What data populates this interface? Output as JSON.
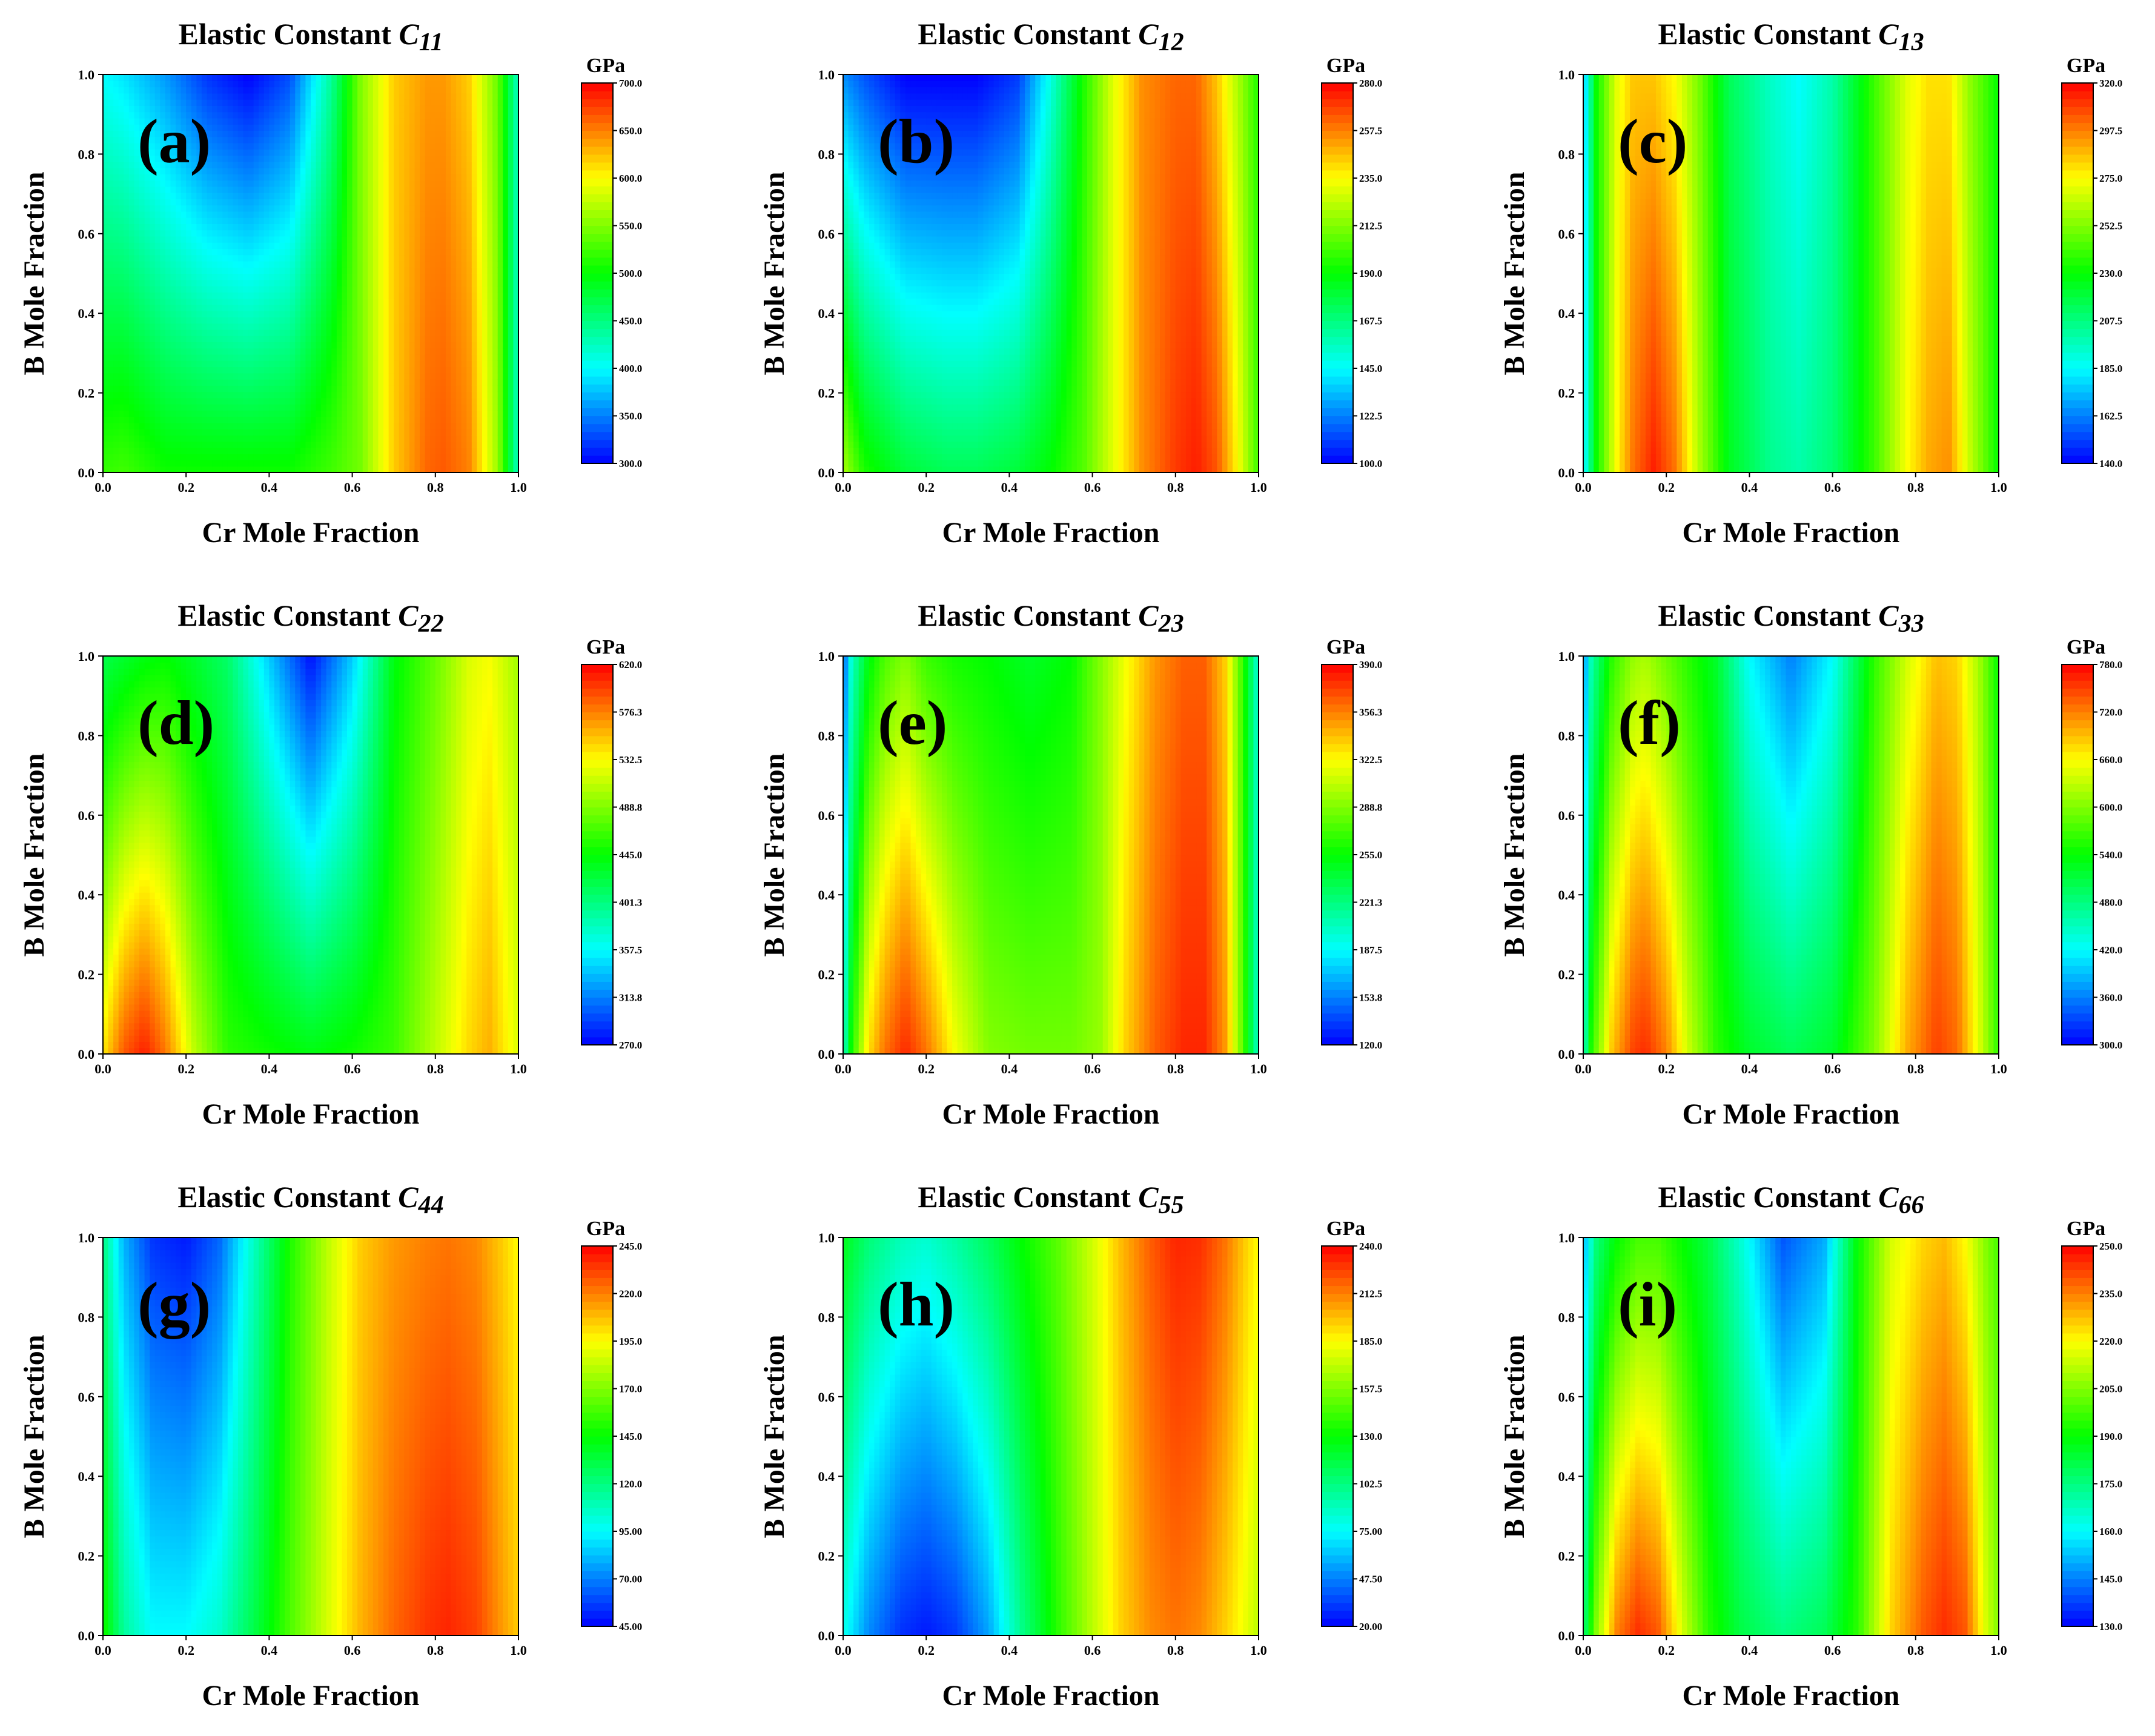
{
  "figure": {
    "x_label": "Cr Mole Fraction",
    "y_label": "B Mole Fraction",
    "colorbar_unit": "GPa",
    "title_prefix": "Elastic Constant",
    "colormap": [
      "#0000ff",
      "#00ffff",
      "#00ff00",
      "#ffff00",
      "#ff0000"
    ]
  },
  "chart_data": [
    {
      "type": "heatmap",
      "panel": "(a)",
      "title": "Elastic Constant C11",
      "title_main": "Elastic Constant",
      "title_sub": "C11",
      "xlabel": "Cr Mole Fraction",
      "ylabel": "B Mole Fraction",
      "xlim": [
        0.0,
        1.0
      ],
      "ylim": [
        0.0,
        1.0
      ],
      "x_ticks": [
        "0.0",
        "0.2",
        "0.4",
        "0.6",
        "0.8",
        "1.0"
      ],
      "y_ticks": [
        "0.0",
        "0.2",
        "0.4",
        "0.6",
        "0.8",
        "1.0"
      ],
      "colorbar_unit": "GPa",
      "colorbar_range": [
        300.0,
        700.0
      ],
      "colorbar_ticks": [
        "300.0",
        "350.0",
        "400.0",
        "450.0",
        "500.0",
        "550.0",
        "600.0",
        "650.0",
        "700.0"
      ],
      "field_profile": {
        "x": [
          0.0,
          0.05,
          0.15,
          0.25,
          0.35,
          0.45,
          0.55,
          0.62,
          0.7,
          0.78,
          0.82,
          0.88,
          0.95,
          1.0
        ],
        "bottom": [
          520,
          525,
          505,
          505,
          505,
          505,
          525,
          545,
          620,
          660,
          665,
          650,
          560,
          420
        ],
        "top": [
          400,
          390,
          360,
          320,
          300,
          330,
          440,
          550,
          620,
          640,
          640,
          620,
          540,
          420
        ]
      }
    },
    {
      "type": "heatmap",
      "panel": "(b)",
      "title": "Elastic Constant C12",
      "title_main": "Elastic Constant",
      "title_sub": "C12",
      "xlabel": "Cr Mole Fraction",
      "ylabel": "B Mole Fraction",
      "xlim": [
        0.0,
        1.0
      ],
      "ylim": [
        0.0,
        1.0
      ],
      "x_ticks": [
        "0.0",
        "0.2",
        "0.4",
        "0.6",
        "0.8",
        "1.0"
      ],
      "y_ticks": [
        "0.0",
        "0.2",
        "0.4",
        "0.6",
        "0.8",
        "1.0"
      ],
      "colorbar_unit": "GPa",
      "colorbar_range": [
        100.0,
        280.0
      ],
      "colorbar_ticks": [
        "100.0",
        "122.5",
        "145.0",
        "167.5",
        "190.0",
        "212.5",
        "235.0",
        "257.5",
        "280.0"
      ],
      "field_profile": {
        "x": [
          0.0,
          0.05,
          0.15,
          0.25,
          0.32,
          0.42,
          0.5,
          0.58,
          0.65,
          0.72,
          0.8,
          0.85,
          0.9,
          0.95,
          1.0
        ],
        "bottom": [
          220,
          195,
          180,
          175,
          175,
          180,
          190,
          205,
          230,
          255,
          270,
          275,
          265,
          235,
          200
        ],
        "top": [
          125,
          115,
          100,
          100,
          100,
          110,
          150,
          195,
          230,
          255,
          262,
          262,
          245,
          220,
          195
        ]
      }
    },
    {
      "type": "heatmap",
      "panel": "(c)",
      "title": "Elastic Constant C13",
      "title_main": "Elastic Constant",
      "title_sub": "C13",
      "xlabel": "Cr Mole Fraction",
      "ylabel": "B Mole Fraction",
      "xlim": [
        0.0,
        1.0
      ],
      "ylim": [
        0.0,
        1.0
      ],
      "x_ticks": [
        "0.0",
        "0.2",
        "0.4",
        "0.6",
        "0.8",
        "1.0"
      ],
      "y_ticks": [
        "0.0",
        "0.2",
        "0.4",
        "0.6",
        "0.8",
        "1.0"
      ],
      "colorbar_unit": "GPa",
      "colorbar_range": [
        140.0,
        320.0
      ],
      "colorbar_ticks": [
        "140.0",
        "162.5",
        "185.0",
        "207.5",
        "230.0",
        "252.5",
        "275.0",
        "297.5",
        "320.0"
      ],
      "field_profile": {
        "x": [
          0.0,
          0.03,
          0.08,
          0.12,
          0.17,
          0.22,
          0.28,
          0.35,
          0.45,
          0.52,
          0.6,
          0.7,
          0.78,
          0.83,
          0.88,
          0.93,
          1.0
        ],
        "bottom": [
          180,
          230,
          275,
          300,
          315,
          300,
          260,
          225,
          205,
          200,
          210,
          240,
          275,
          290,
          295,
          265,
          230
        ],
        "top": [
          170,
          230,
          270,
          285,
          285,
          275,
          250,
          215,
          195,
          185,
          200,
          240,
          270,
          280,
          280,
          255,
          230
        ]
      }
    },
    {
      "type": "heatmap",
      "panel": "(d)",
      "title": "Elastic Constant C22",
      "title_main": "Elastic Constant",
      "title_sub": "C22",
      "xlabel": "Cr Mole Fraction",
      "ylabel": "B Mole Fraction",
      "xlim": [
        0.0,
        1.0
      ],
      "ylim": [
        0.0,
        1.0
      ],
      "x_ticks": [
        "0.0",
        "0.2",
        "0.4",
        "0.6",
        "0.8",
        "1.0"
      ],
      "y_ticks": [
        "0.0",
        "0.2",
        "0.4",
        "0.6",
        "0.8",
        "1.0"
      ],
      "colorbar_unit": "GPa",
      "colorbar_range": [
        270.0,
        620.0
      ],
      "colorbar_ticks": [
        "270.0",
        "313.8",
        "357.5",
        "401.3",
        "445.0",
        "488.8",
        "532.5",
        "576.3",
        "620.0"
      ],
      "field_profile": {
        "x": [
          0.0,
          0.05,
          0.1,
          0.15,
          0.22,
          0.3,
          0.4,
          0.5,
          0.6,
          0.7,
          0.8,
          0.88,
          0.93,
          1.0
        ],
        "bottom": [
          540,
          590,
          610,
          580,
          510,
          460,
          450,
          440,
          450,
          465,
          510,
          545,
          560,
          520
        ],
        "top": [
          420,
          430,
          440,
          445,
          430,
          410,
          340,
          275,
          340,
          440,
          480,
          520,
          530,
          500
        ]
      }
    },
    {
      "type": "heatmap",
      "panel": "(e)",
      "title": "Elastic Constant C23",
      "title_main": "Elastic Constant",
      "title_sub": "C23",
      "xlabel": "Cr Mole Fraction",
      "ylabel": "B Mole Fraction",
      "xlim": [
        0.0,
        1.0
      ],
      "ylim": [
        0.0,
        1.0
      ],
      "x_ticks": [
        "0.0",
        "0.2",
        "0.4",
        "0.6",
        "0.8",
        "1.0"
      ],
      "y_ticks": [
        "0.0",
        "0.2",
        "0.4",
        "0.6",
        "0.8",
        "1.0"
      ],
      "colorbar_unit": "GPa",
      "colorbar_range": [
        120.0,
        390.0
      ],
      "colorbar_ticks": [
        "120.0",
        "153.8",
        "187.5",
        "221.3",
        "255.0",
        "288.8",
        "322.5",
        "356.3",
        "390.0"
      ],
      "field_profile": {
        "x": [
          0.0,
          0.02,
          0.06,
          0.1,
          0.15,
          0.2,
          0.27,
          0.35,
          0.45,
          0.55,
          0.62,
          0.68,
          0.75,
          0.82,
          0.87,
          0.92,
          0.96,
          1.0
        ],
        "bottom": [
          200,
          260,
          330,
          360,
          380,
          360,
          320,
          290,
          285,
          285,
          295,
          335,
          365,
          380,
          380,
          350,
          280,
          200
        ],
        "top": [
          140,
          200,
          250,
          275,
          290,
          270,
          260,
          255,
          245,
          255,
          290,
          320,
          350,
          365,
          365,
          335,
          270,
          195
        ]
      }
    },
    {
      "type": "heatmap",
      "panel": "(f)",
      "title": "Elastic Constant C33",
      "title_main": "Elastic Constant",
      "title_sub": "C33",
      "xlabel": "Cr Mole Fraction",
      "ylabel": "B Mole Fraction",
      "xlim": [
        0.0,
        1.0
      ],
      "ylim": [
        0.0,
        1.0
      ],
      "x_ticks": [
        "0.0",
        "0.2",
        "0.4",
        "0.6",
        "0.8",
        "1.0"
      ],
      "y_ticks": [
        "0.0",
        "0.2",
        "0.4",
        "0.6",
        "0.8",
        "1.0"
      ],
      "colorbar_unit": "GPa",
      "colorbar_range": [
        300.0,
        780.0
      ],
      "colorbar_ticks": [
        "300.0",
        "360.0",
        "420.0",
        "480.0",
        "540.0",
        "600.0",
        "660.0",
        "720.0",
        "780.0"
      ],
      "field_profile": {
        "x": [
          0.0,
          0.02,
          0.07,
          0.12,
          0.15,
          0.2,
          0.25,
          0.32,
          0.4,
          0.5,
          0.6,
          0.7,
          0.78,
          0.85,
          0.9,
          0.95,
          1.0
        ],
        "bottom": [
          440,
          560,
          690,
          750,
          760,
          720,
          640,
          560,
          520,
          500,
          520,
          600,
          700,
          750,
          730,
          650,
          560
        ],
        "top": [
          360,
          460,
          560,
          610,
          620,
          590,
          560,
          520,
          420,
          360,
          420,
          560,
          640,
          690,
          680,
          620,
          540
        ]
      }
    },
    {
      "type": "heatmap",
      "panel": "(g)",
      "title": "Elastic Constant C44",
      "title_main": "Elastic Constant",
      "title_sub": "C44",
      "xlabel": "Cr Mole Fraction",
      "ylabel": "B Mole Fraction",
      "xlim": [
        0.0,
        1.0
      ],
      "ylim": [
        0.0,
        1.0
      ],
      "x_ticks": [
        "0.0",
        "0.2",
        "0.4",
        "0.6",
        "0.8",
        "1.0"
      ],
      "y_ticks": [
        "0.0",
        "0.2",
        "0.4",
        "0.6",
        "0.8",
        "1.0"
      ],
      "colorbar_unit": "GPa",
      "colorbar_range": [
        45.0,
        245.0
      ],
      "colorbar_ticks": [
        "45.00",
        "70.00",
        "95.00",
        "120.0",
        "145.0",
        "170.0",
        "195.0",
        "220.0",
        "245.0"
      ],
      "field_profile": {
        "x": [
          0.0,
          0.05,
          0.12,
          0.2,
          0.28,
          0.36,
          0.45,
          0.55,
          0.62,
          0.7,
          0.78,
          0.83,
          0.9,
          0.96,
          1.0
        ],
        "bottom": [
          150,
          115,
          95,
          95,
          105,
          130,
          160,
          190,
          210,
          225,
          235,
          238,
          232,
          215,
          205
        ],
        "top": [
          120,
          80,
          55,
          50,
          65,
          105,
          150,
          185,
          205,
          215,
          220,
          222,
          218,
          205,
          195
        ]
      }
    },
    {
      "type": "heatmap",
      "panel": "(h)",
      "title": "Elastic Constant C55",
      "title_main": "Elastic Constant",
      "title_sub": "C55",
      "xlabel": "Cr Mole Fraction",
      "ylabel": "B Mole Fraction",
      "xlim": [
        0.0,
        1.0
      ],
      "ylim": [
        0.0,
        1.0
      ],
      "x_ticks": [
        "0.0",
        "0.2",
        "0.4",
        "0.6",
        "0.8",
        "1.0"
      ],
      "y_ticks": [
        "0.0",
        "0.2",
        "0.4",
        "0.6",
        "0.8",
        "1.0"
      ],
      "colorbar_unit": "GPa",
      "colorbar_range": [
        20.0,
        240.0
      ],
      "colorbar_ticks": [
        "20.00",
        "47.50",
        "75.00",
        "102.5",
        "130.0",
        "157.5",
        "185.0",
        "212.5",
        "240.0"
      ],
      "field_profile": {
        "x": [
          0.0,
          0.06,
          0.14,
          0.2,
          0.27,
          0.35,
          0.43,
          0.52,
          0.6,
          0.67,
          0.74,
          0.8,
          0.86,
          0.92,
          0.97,
          1.0
        ],
        "bottom": [
          80,
          50,
          30,
          25,
          32,
          55,
          100,
          140,
          170,
          195,
          210,
          215,
          210,
          195,
          180,
          170
        ],
        "top": [
          125,
          105,
          90,
          85,
          95,
          110,
          130,
          150,
          175,
          200,
          220,
          232,
          230,
          215,
          195,
          185
        ]
      }
    },
    {
      "type": "heatmap",
      "panel": "(i)",
      "title": "Elastic Constant C66",
      "title_main": "Elastic Constant",
      "title_sub": "C66",
      "xlabel": "Cr Mole Fraction",
      "ylabel": "B Mole Fraction",
      "xlim": [
        0.0,
        1.0
      ],
      "ylim": [
        0.0,
        1.0
      ],
      "x_ticks": [
        "0.0",
        "0.2",
        "0.4",
        "0.6",
        "0.8",
        "1.0"
      ],
      "y_ticks": [
        "0.0",
        "0.2",
        "0.4",
        "0.6",
        "0.8",
        "1.0"
      ],
      "colorbar_unit": "GPa",
      "colorbar_range": [
        130.0,
        250.0
      ],
      "colorbar_ticks": [
        "130.0",
        "145.0",
        "160.0",
        "175.0",
        "190.0",
        "205.0",
        "220.0",
        "235.0",
        "250.0"
      ],
      "field_profile": {
        "x": [
          0.0,
          0.03,
          0.08,
          0.13,
          0.18,
          0.24,
          0.3,
          0.38,
          0.48,
          0.58,
          0.66,
          0.74,
          0.82,
          0.87,
          0.92,
          0.97,
          1.0
        ],
        "bottom": [
          175,
          205,
          235,
          245,
          240,
          215,
          195,
          182,
          175,
          180,
          195,
          225,
          240,
          245,
          240,
          215,
          205
        ],
        "top": [
          150,
          175,
          190,
          198,
          198,
          190,
          182,
          165,
          140,
          150,
          190,
          215,
          225,
          228,
          220,
          205,
          198
        ]
      }
    }
  ]
}
